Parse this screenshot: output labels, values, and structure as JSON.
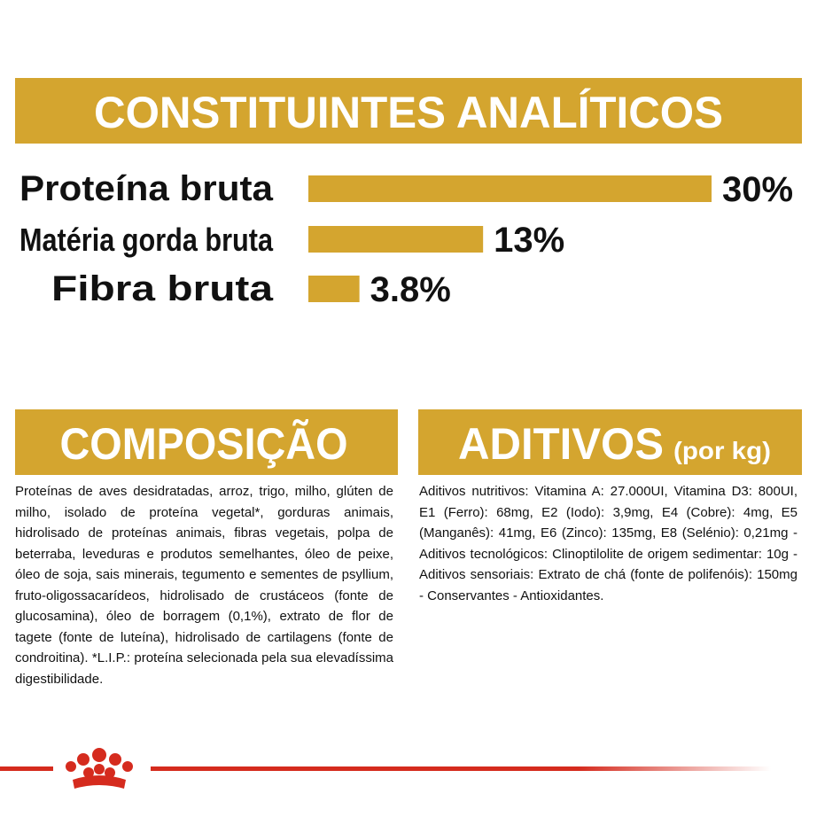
{
  "header": {
    "title": "CONSTITUINTES ANALÍTICOS"
  },
  "chart_data": {
    "type": "bar",
    "orientation": "horizontal",
    "categories": [
      "Proteína bruta",
      "Matéria gorda bruta",
      "Fibra bruta"
    ],
    "values": [
      30,
      13,
      3.8
    ],
    "value_labels": [
      "30%",
      "13%",
      "3.8%"
    ],
    "xlim": [
      0,
      30
    ],
    "color": "#d4a52f"
  },
  "composition": {
    "title": "COMPOSIÇÃO",
    "text": "Proteínas de aves desidratadas, arroz, trigo, milho, glúten de milho, isolado de proteína vegetal*, gorduras animais, hidrolisado de proteínas animais, fibras vegetais, polpa de beterraba, leveduras e produtos semelhantes, óleo de peixe, óleo de soja, sais minerais, tegumento e sementes de psyllium, fruto-oligossacarídeos, hidrolisado de crustáceos (fonte de glucosamina), óleo de borragem (0,1%), extrato de flor de tagete (fonte de luteína), hidrolisado de cartilagens (fonte de condroitina). *L.I.P.: proteína selecionada pela sua elevadíssima digestibilidade."
  },
  "additives": {
    "title": "ADITIVOS",
    "suffix": "(por kg)",
    "text": "Aditivos nutritivos: Vitamina A: 27.000UI, Vitamina D3: 800UI, E1 (Ferro): 68mg, E2 (Iodo): 3,9mg, E4 (Cobre): 4mg, E5 (Manganês): 41mg, E6 (Zinco): 135mg, E8 (Selénio): 0,21mg - Aditivos tecnológicos: Clinoptilolite de origem sedimentar: 10g - Aditivos sensoriais: Extrato de chá (fonte de polifenóis): 150mg - Conservantes - Antioxidantes."
  }
}
